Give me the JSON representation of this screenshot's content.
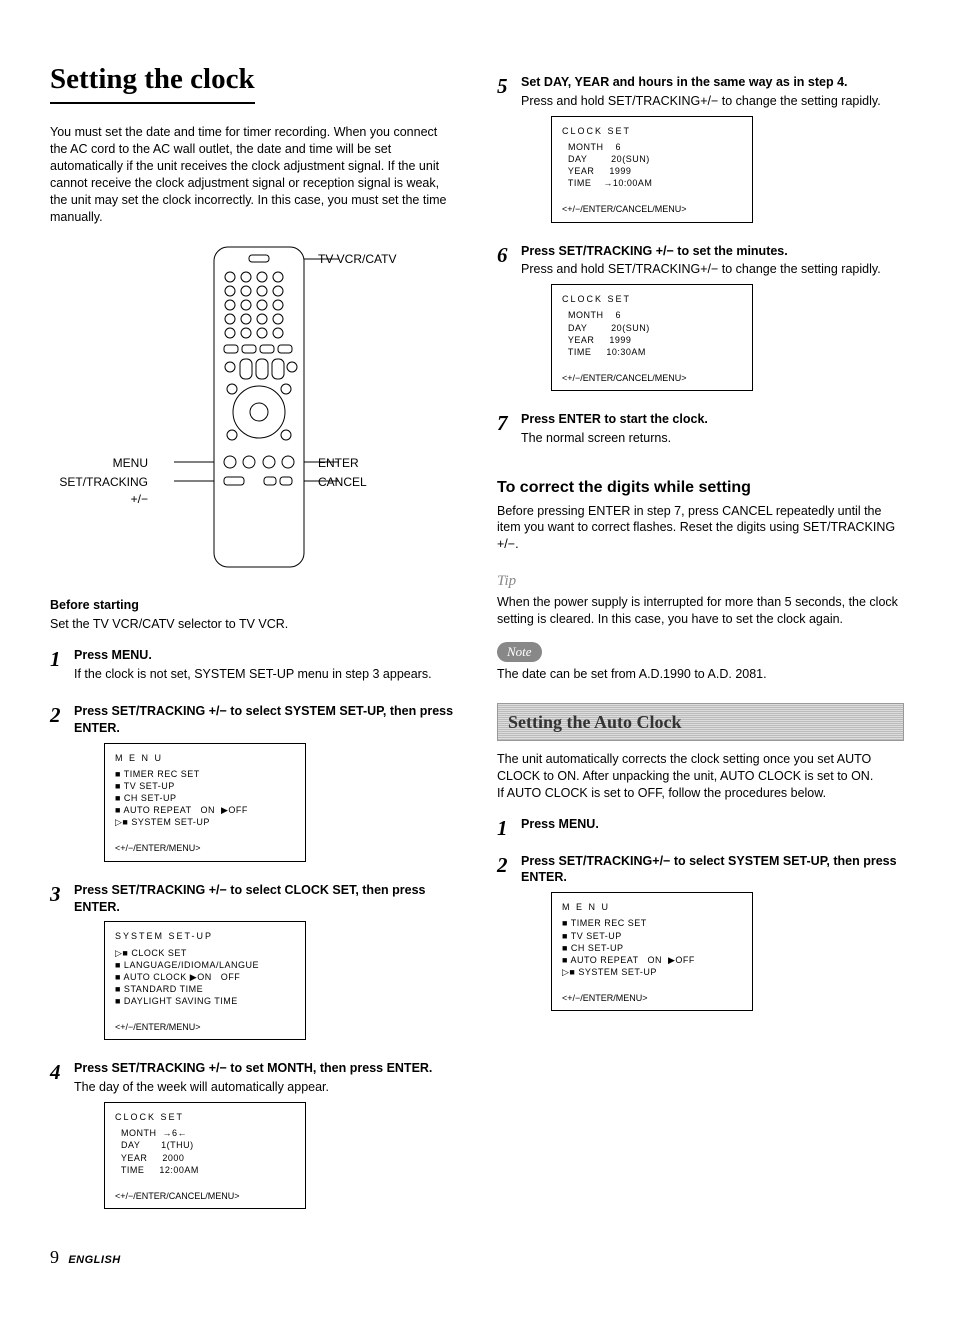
{
  "title": "Setting the clock",
  "intro": "You must set the date and time for timer recording. When you connect the AC cord to the AC wall outlet, the date and time will be set automatically if the unit receives the clock adjustment signal. If the unit cannot receive the clock adjustment signal or reception signal is weak, the unit may set the clock incorrectly. In this case, you must set the time manually.",
  "remote_labels": {
    "tvvcr": "TV VCR/CATV",
    "menu": "MENU",
    "enter": "ENTER",
    "settracking": "SET/TRACKING +/−",
    "cancel": "CANCEL"
  },
  "before_heading": "Before starting",
  "before_text": "Set the TV VCR/CATV selector to TV VCR.",
  "left_steps": [
    {
      "num": "1",
      "title": "Press MENU.",
      "desc": "If the clock is not set, SYSTEM SET-UP menu in step 3 appears.",
      "screen": null
    },
    {
      "num": "2",
      "title": "Press SET/TRACKING +/− to select SYSTEM SET-UP, then press ENTER.",
      "desc": "",
      "screen": {
        "title": "M E N U",
        "lines": [
          "■ TIMER REC SET",
          "■ TV SET-UP",
          "■ CH SET-UP",
          "■ AUTO REPEAT   ON  ▶OFF",
          "▷■ SYSTEM SET-UP"
        ],
        "foot": "<+/−/ENTER/MENU>"
      }
    },
    {
      "num": "3",
      "title": "Press SET/TRACKING +/− to select CLOCK SET, then press ENTER.",
      "desc": "",
      "screen": {
        "title": "SYSTEM SET-UP",
        "lines": [
          "▷■ CLOCK SET",
          "■ LANGUAGE/IDIOMA/LANGUE",
          "■ AUTO CLOCK ▶ON   OFF",
          "■ STANDARD TIME",
          "■ DAYLIGHT SAVING TIME"
        ],
        "foot": "<+/−/ENTER/MENU>"
      }
    },
    {
      "num": "4",
      "title": "Press SET/TRACKING +/− to set MONTH, then press ENTER.",
      "desc": "The day of the week will automatically appear.",
      "screen": {
        "title": "CLOCK SET",
        "lines": [
          "  MONTH  →6←",
          "  DAY       1(THU)",
          "  YEAR     2000",
          "  TIME     12:00AM"
        ],
        "foot": "<+/−/ENTER/CANCEL/MENU>"
      }
    }
  ],
  "right_steps": [
    {
      "num": "5",
      "title": "Set DAY, YEAR and hours in the same way as in step 4.",
      "desc": "Press and hold SET/TRACKING+/− to change the setting rapidly.",
      "screen": {
        "title": "CLOCK SET",
        "lines": [
          "  MONTH    6",
          "  DAY        20(SUN)",
          "  YEAR     1999",
          "  TIME    →10:00AM"
        ],
        "foot": "<+/−/ENTER/CANCEL/MENU>"
      }
    },
    {
      "num": "6",
      "title": "Press SET/TRACKING +/− to set the minutes.",
      "desc": "Press and hold SET/TRACKING+/− to change the setting rapidly.",
      "screen": {
        "title": "CLOCK SET",
        "lines": [
          "  MONTH    6",
          "  DAY        20(SUN)",
          "  YEAR     1999",
          "  TIME     10:30AM"
        ],
        "foot": "<+/−/ENTER/CANCEL/MENU>"
      }
    },
    {
      "num": "7",
      "title": "Press ENTER to start the clock.",
      "desc": "The normal screen returns.",
      "screen": null
    }
  ],
  "correct_heading": "To correct the digits while setting",
  "correct_text": "Before pressing ENTER in step 7, press CANCEL repeatedly until the item you want to correct flashes.  Reset the digits using SET/TRACKING +/−.",
  "tip_label": "Tip",
  "tip_text": "When the power supply is interrupted for more than 5 seconds, the clock setting is cleared. In this case, you have to set the clock again.",
  "note_label": "Note",
  "note_text": "The date can be set from A.D.1990 to A.D. 2081.",
  "autoclock_heading": "Setting the Auto Clock",
  "autoclock_text": "The unit automatically corrects the clock setting once you set AUTO CLOCK to ON.  After unpacking the unit, AUTO CLOCK is set to ON.\nIf AUTO CLOCK is set to OFF, follow the procedures below.",
  "autoclock_steps": [
    {
      "num": "1",
      "title": "Press MENU.",
      "desc": "",
      "screen": null
    },
    {
      "num": "2",
      "title": "Press SET/TRACKING+/− to select SYSTEM SET-UP, then press ENTER.",
      "desc": "",
      "screen": {
        "title": "M E N U",
        "lines": [
          "■ TIMER REC SET",
          "■ TV SET-UP",
          "■ CH SET-UP",
          "■ AUTO REPEAT   ON  ▶OFF",
          "▷■ SYSTEM SET-UP"
        ],
        "foot": "<+/−/ENTER/MENU>"
      }
    }
  ],
  "page_number": "9",
  "page_language": "ENGLISH",
  "colors": {
    "text": "#000000",
    "bg": "#ffffff",
    "band_bg": "#bbbbbb",
    "tip_gray": "#888888"
  }
}
